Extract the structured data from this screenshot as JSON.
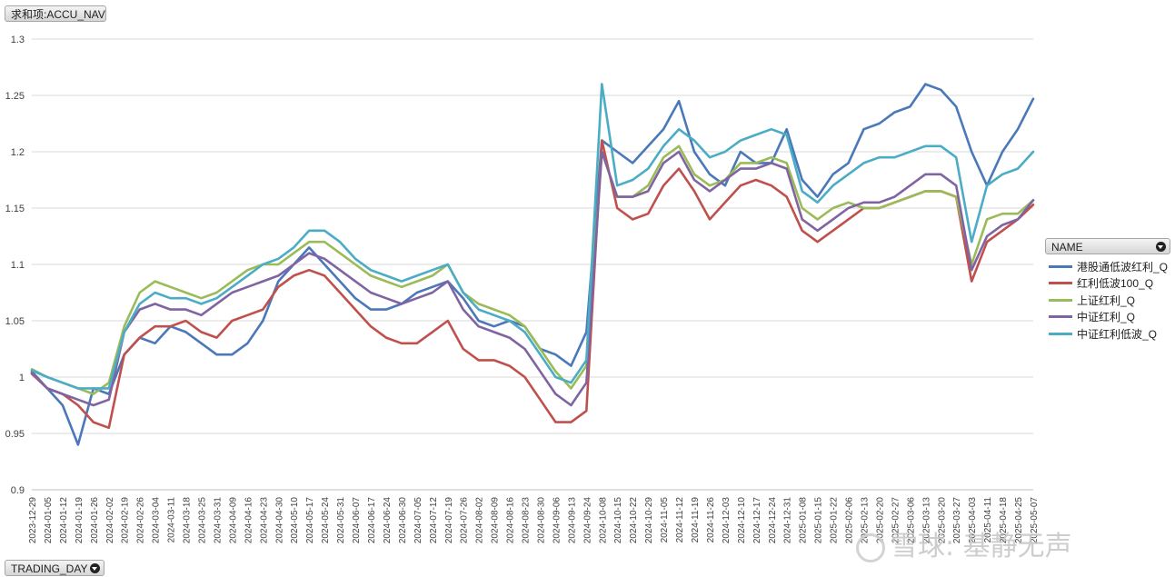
{
  "controls": {
    "value_field": "求和项:ACCU_NAV",
    "axis_field": "TRADING_DAY",
    "legend_field": "NAME"
  },
  "watermark": "雪球: 基静无声",
  "chart_data": {
    "type": "line",
    "ylim": [
      0.9,
      1.3
    ],
    "yticks": [
      0.9,
      0.95,
      1,
      1.05,
      1.1,
      1.15,
      1.2,
      1.25,
      1.3
    ],
    "grid": true,
    "legend_position": "right",
    "categories": [
      "2023-12-29",
      "2024-01-05",
      "2024-01-12",
      "2024-01-19",
      "2024-01-26",
      "2024-02-02",
      "2024-02-19",
      "2024-02-26",
      "2024-03-04",
      "2024-03-11",
      "2024-03-18",
      "2024-03-25",
      "2024-03-31",
      "2024-04-09",
      "2024-04-16",
      "2024-04-23",
      "2024-04-30",
      "2024-05-10",
      "2024-05-17",
      "2024-05-24",
      "2024-05-31",
      "2024-06-07",
      "2024-06-17",
      "2024-06-24",
      "2024-06-30",
      "2024-07-05",
      "2024-07-12",
      "2024-07-19",
      "2024-07-26",
      "2024-08-02",
      "2024-08-09",
      "2024-08-16",
      "2024-08-23",
      "2024-08-30",
      "2024-09-06",
      "2024-09-13",
      "2024-09-24",
      "2024-10-08",
      "2024-10-15",
      "2024-10-22",
      "2024-10-29",
      "2024-11-05",
      "2024-11-12",
      "2024-11-19",
      "2024-11-26",
      "2024-12-03",
      "2024-12-10",
      "2024-12-17",
      "2024-12-24",
      "2024-12-31",
      "2025-01-08",
      "2025-01-15",
      "2025-01-22",
      "2025-02-06",
      "2025-02-13",
      "2025-02-20",
      "2025-02-27",
      "2025-03-06",
      "2025-03-13",
      "2025-03-20",
      "2025-03-27",
      "2025-04-03",
      "2025-04-11",
      "2025-04-18",
      "2025-04-25",
      "2025-05-07"
    ],
    "series": [
      {
        "name": "港股通低波红利_Q",
        "color": "#4a78b8",
        "values": [
          1.005,
          0.99,
          0.975,
          0.94,
          0.99,
          0.985,
          1.02,
          1.035,
          1.03,
          1.045,
          1.04,
          1.03,
          1.02,
          1.02,
          1.03,
          1.05,
          1.085,
          1.1,
          1.115,
          1.1,
          1.085,
          1.07,
          1.06,
          1.06,
          1.065,
          1.075,
          1.08,
          1.085,
          1.07,
          1.05,
          1.045,
          1.05,
          1.045,
          1.025,
          1.02,
          1.01,
          1.04,
          1.21,
          1.2,
          1.19,
          1.205,
          1.22,
          1.245,
          1.2,
          1.18,
          1.17,
          1.2,
          1.19,
          1.19,
          1.22,
          1.175,
          1.16,
          1.18,
          1.19,
          1.22,
          1.225,
          1.235,
          1.24,
          1.26,
          1.255,
          1.24,
          1.2,
          1.17,
          1.2,
          1.22,
          1.247
        ]
      },
      {
        "name": "红利低波100_Q",
        "color": "#c0504d",
        "values": [
          1.003,
          0.99,
          0.985,
          0.975,
          0.96,
          0.955,
          1.02,
          1.035,
          1.045,
          1.045,
          1.05,
          1.04,
          1.035,
          1.05,
          1.055,
          1.06,
          1.08,
          1.09,
          1.095,
          1.09,
          1.075,
          1.06,
          1.045,
          1.035,
          1.03,
          1.03,
          1.04,
          1.05,
          1.025,
          1.015,
          1.015,
          1.01,
          1.0,
          0.98,
          0.96,
          0.96,
          0.97,
          1.21,
          1.15,
          1.14,
          1.145,
          1.17,
          1.185,
          1.165,
          1.14,
          1.155,
          1.17,
          1.175,
          1.17,
          1.16,
          1.13,
          1.12,
          1.13,
          1.14,
          1.15,
          1.15,
          1.155,
          1.16,
          1.165,
          1.165,
          1.16,
          1.085,
          1.12,
          1.13,
          1.14,
          1.153
        ]
      },
      {
        "name": "上证红利_Q",
        "color": "#9bbb59",
        "values": [
          1.007,
          1.0,
          0.995,
          0.99,
          0.985,
          0.995,
          1.045,
          1.075,
          1.085,
          1.08,
          1.075,
          1.07,
          1.075,
          1.085,
          1.095,
          1.1,
          1.1,
          1.11,
          1.12,
          1.12,
          1.11,
          1.1,
          1.09,
          1.085,
          1.08,
          1.085,
          1.09,
          1.1,
          1.075,
          1.065,
          1.06,
          1.055,
          1.045,
          1.025,
          1.005,
          0.99,
          1.01,
          1.2,
          1.16,
          1.16,
          1.17,
          1.195,
          1.205,
          1.18,
          1.17,
          1.175,
          1.19,
          1.19,
          1.195,
          1.19,
          1.15,
          1.14,
          1.15,
          1.155,
          1.15,
          1.15,
          1.155,
          1.16,
          1.165,
          1.165,
          1.16,
          1.1,
          1.14,
          1.145,
          1.145,
          1.157
        ]
      },
      {
        "name": "中证红利_Q",
        "color": "#8064a2",
        "values": [
          1.004,
          0.99,
          0.985,
          0.98,
          0.975,
          0.98,
          1.04,
          1.06,
          1.065,
          1.06,
          1.06,
          1.055,
          1.065,
          1.075,
          1.08,
          1.085,
          1.09,
          1.1,
          1.11,
          1.105,
          1.095,
          1.085,
          1.075,
          1.07,
          1.065,
          1.07,
          1.075,
          1.085,
          1.06,
          1.045,
          1.04,
          1.035,
          1.025,
          1.005,
          0.985,
          0.975,
          0.995,
          1.2,
          1.16,
          1.16,
          1.165,
          1.19,
          1.2,
          1.175,
          1.165,
          1.175,
          1.185,
          1.185,
          1.19,
          1.185,
          1.14,
          1.13,
          1.14,
          1.15,
          1.155,
          1.155,
          1.16,
          1.17,
          1.18,
          1.18,
          1.17,
          1.095,
          1.125,
          1.135,
          1.14,
          1.157
        ]
      },
      {
        "name": "中证红利低波_Q",
        "color": "#4bacc6",
        "values": [
          1.006,
          1.0,
          0.995,
          0.99,
          0.99,
          0.99,
          1.04,
          1.065,
          1.075,
          1.07,
          1.07,
          1.065,
          1.07,
          1.08,
          1.09,
          1.1,
          1.105,
          1.115,
          1.13,
          1.13,
          1.12,
          1.105,
          1.095,
          1.09,
          1.085,
          1.09,
          1.095,
          1.1,
          1.075,
          1.06,
          1.055,
          1.05,
          1.04,
          1.02,
          1.0,
          0.995,
          1.015,
          1.26,
          1.17,
          1.175,
          1.185,
          1.205,
          1.22,
          1.21,
          1.195,
          1.2,
          1.21,
          1.215,
          1.22,
          1.215,
          1.165,
          1.155,
          1.17,
          1.18,
          1.19,
          1.195,
          1.195,
          1.2,
          1.205,
          1.205,
          1.195,
          1.12,
          1.17,
          1.18,
          1.185,
          1.2
        ]
      }
    ]
  }
}
